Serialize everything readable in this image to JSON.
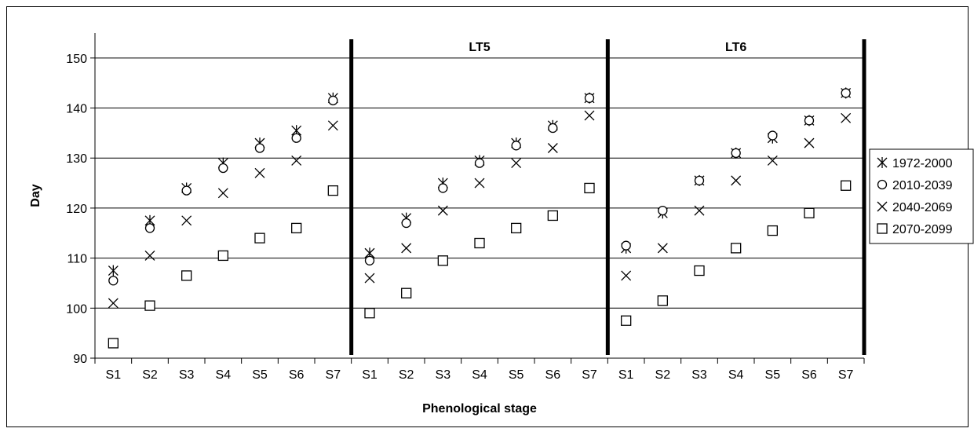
{
  "chart_data": {
    "type": "scatter",
    "xlabel": "Phenological stage",
    "ylabel": "Day",
    "ylim": [
      90,
      155
    ],
    "yticks": [
      90,
      100,
      110,
      120,
      130,
      140,
      150
    ],
    "grid": true,
    "legend_position": "right",
    "panels": [
      {
        "title": "",
        "categories": [
          "S1",
          "S2",
          "S3",
          "S4",
          "S5",
          "S6",
          "S7"
        ]
      },
      {
        "title": "LT5",
        "categories": [
          "S1",
          "S2",
          "S3",
          "S4",
          "S5",
          "S6",
          "S7"
        ]
      },
      {
        "title": "LT6",
        "categories": [
          "S1",
          "S2",
          "S3",
          "S4",
          "S5",
          "S6",
          "S7"
        ]
      }
    ],
    "series": [
      {
        "name": "1972-2000",
        "marker": "asterisk",
        "values": [
          107.5,
          117.5,
          124,
          129,
          133,
          135.5,
          142,
          111,
          118,
          125,
          129.5,
          133,
          136.5,
          142,
          112,
          119,
          125.5,
          131,
          134,
          137.5,
          143
        ]
      },
      {
        "name": "2010-2039",
        "marker": "circle",
        "values": [
          105.5,
          116,
          123.5,
          128,
          132,
          134,
          141.5,
          109.5,
          117,
          124,
          129,
          132.5,
          136,
          142,
          112.5,
          119.5,
          125.5,
          131,
          134.5,
          137.5,
          143
        ]
      },
      {
        "name": "2040-2069",
        "marker": "x",
        "values": [
          101,
          110.5,
          117.5,
          123,
          127,
          129.5,
          136.5,
          106,
          112,
          119.5,
          125,
          129,
          132,
          138.5,
          106.5,
          112,
          119.5,
          125.5,
          129.5,
          133,
          138
        ]
      },
      {
        "name": "2070-2099",
        "marker": "square",
        "values": [
          93,
          100.5,
          106.5,
          110.5,
          114,
          116,
          123.5,
          99,
          103,
          109.5,
          113,
          116,
          118.5,
          124,
          97.5,
          101.5,
          107.5,
          112,
          115.5,
          119,
          124.5
        ]
      }
    ]
  }
}
